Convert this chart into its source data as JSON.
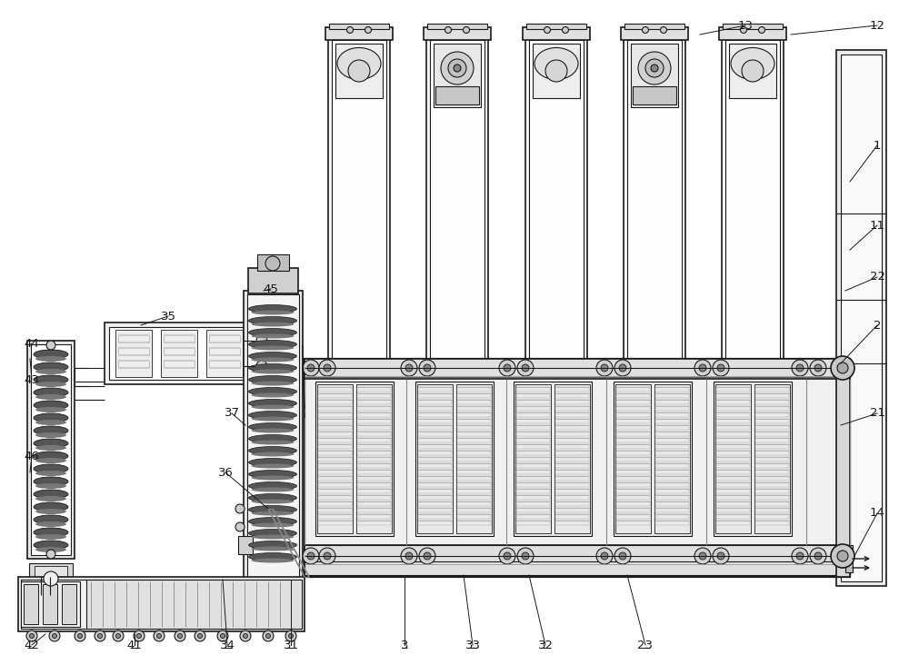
{
  "bg_color": "#ffffff",
  "lc": "#1a1a1a",
  "fc_white": "#ffffff",
  "fc_light": "#f0f0f0",
  "fc_mid": "#d8d8d8",
  "fc_dark": "#888888",
  "fc_black": "#333333"
}
